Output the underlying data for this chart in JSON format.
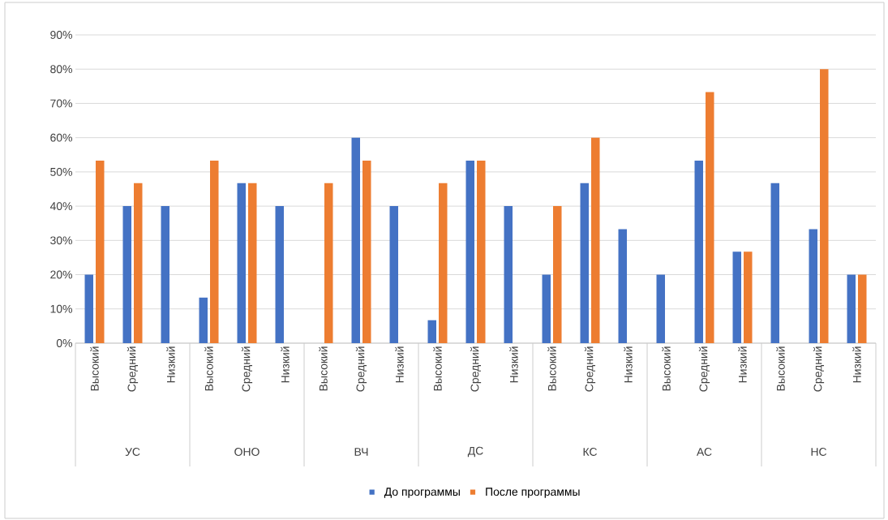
{
  "chart_data": {
    "type": "bar",
    "categories": [
      "Высокий",
      "Средний",
      "Низкий",
      "Высокий",
      "Средний",
      "Низкий",
      "Высокий",
      "Средний",
      "Низкий",
      "Высокий",
      "Средний",
      "Низкий",
      "Высокий",
      "Средний",
      "Низкий",
      "Высокий",
      "Средний",
      "Низкий",
      "Высокий",
      "Средний",
      "Низкий"
    ],
    "annotations": [
      "УС",
      "ОНО",
      "ВЧ",
      "ДС",
      "КС",
      "АС",
      "НС"
    ],
    "series": [
      {
        "name": "До программы",
        "color": "#4472c4",
        "values": [
          20,
          40,
          40,
          13.3,
          46.7,
          40,
          0,
          60,
          40,
          6.7,
          53.3,
          40,
          20,
          46.7,
          33.3,
          20,
          53.3,
          26.7,
          46.7,
          33.3,
          20
        ]
      },
      {
        "name": "После программы",
        "color": "#ed7d31",
        "values": [
          53.3,
          46.7,
          0,
          53.3,
          46.7,
          0,
          46.7,
          53.3,
          0,
          46.7,
          53.3,
          0,
          40,
          60,
          0,
          0,
          73.3,
          26.7,
          0,
          80,
          20
        ]
      }
    ],
    "ylim": [
      0,
      90
    ],
    "yticks": [
      {
        "value": 0,
        "label": "0%"
      },
      {
        "value": 10,
        "label": "10%"
      },
      {
        "value": 20,
        "label": "20%"
      },
      {
        "value": 30,
        "label": "30%"
      },
      {
        "value": 40,
        "label": "40%"
      },
      {
        "value": 50,
        "label": "50%"
      },
      {
        "value": 60,
        "label": "60%"
      },
      {
        "value": 70,
        "label": "70%"
      },
      {
        "value": 80,
        "label": "80%"
      },
      {
        "value": 90,
        "label": "90%"
      }
    ],
    "grid": "y",
    "legend": "bottom"
  }
}
